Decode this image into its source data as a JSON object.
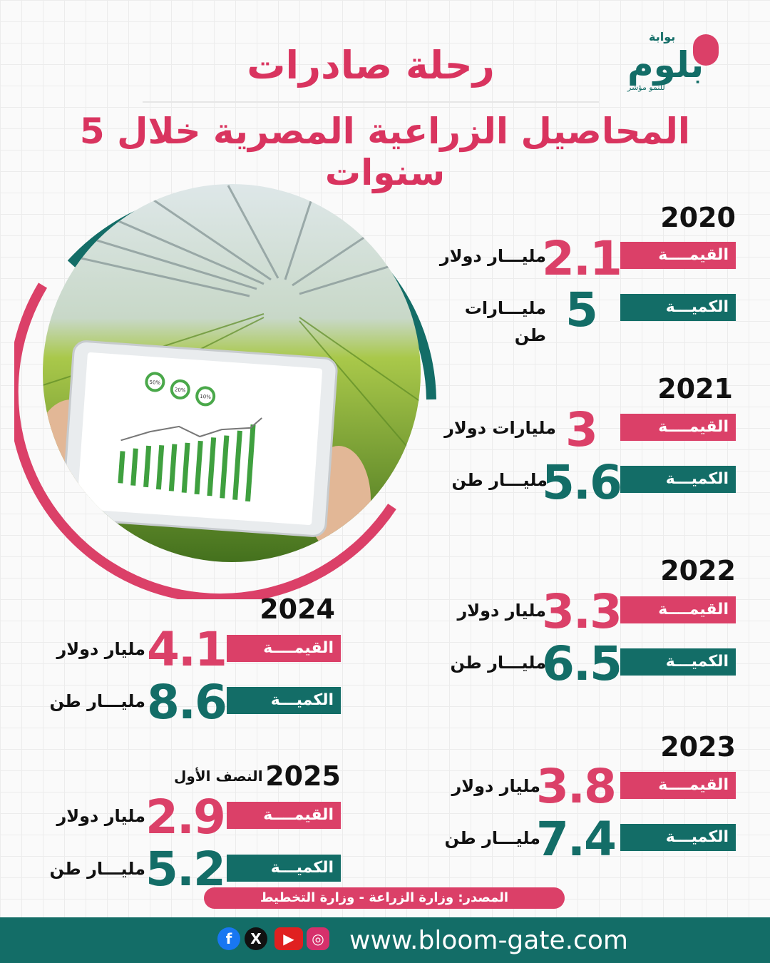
{
  "header": {
    "title_line1": "رحلة صادرات",
    "title_line2": "المحاصيل الزراعية المصرية خلال 5 سنوات"
  },
  "logo": {
    "small": "بوابة",
    "main": "بلوم",
    "tagline": "للنمو مؤشر"
  },
  "labels": {
    "value": "القيمــــة",
    "quantity": "الكميـــة"
  },
  "years": [
    {
      "year": "2020",
      "value": "2.1",
      "value_unit": "مليـــار دولار",
      "quantity": "5",
      "quantity_unit": "مليـــارات طن"
    },
    {
      "year": "2021",
      "value": "3",
      "value_unit": "مليارات دولار",
      "quantity": "5.6",
      "quantity_unit": "مليـــار طن"
    },
    {
      "year": "2022",
      "value": "3.3",
      "value_unit": "مليار دولار",
      "quantity": "6.5",
      "quantity_unit": "مليـــار طن"
    },
    {
      "year": "2023",
      "value": "3.8",
      "value_unit": "مليار دولار",
      "quantity": "7.4",
      "quantity_unit": "مليـــار طن"
    },
    {
      "year": "2024",
      "value": "4.1",
      "value_unit": "مليار دولار",
      "quantity": "8.6",
      "quantity_unit": "مليـــار طن"
    },
    {
      "year": "2025",
      "half_note": "النصف الأول",
      "value": "2.9",
      "value_unit": "مليار دولار",
      "quantity": "5.2",
      "quantity_unit": "مليـــار طن"
    }
  ],
  "tablet_badges": [
    "50%",
    "20%",
    "10%"
  ],
  "source": "المصدر: وزارة الزراعة - وزارة التخطيط",
  "footer": {
    "website": "www.bloom-gate.com"
  },
  "social_icons": [
    "facebook-icon",
    "x-icon",
    "youtube-icon",
    "instagram-icon"
  ],
  "colors": {
    "pink": "#db4068",
    "teal": "#136d67"
  }
}
